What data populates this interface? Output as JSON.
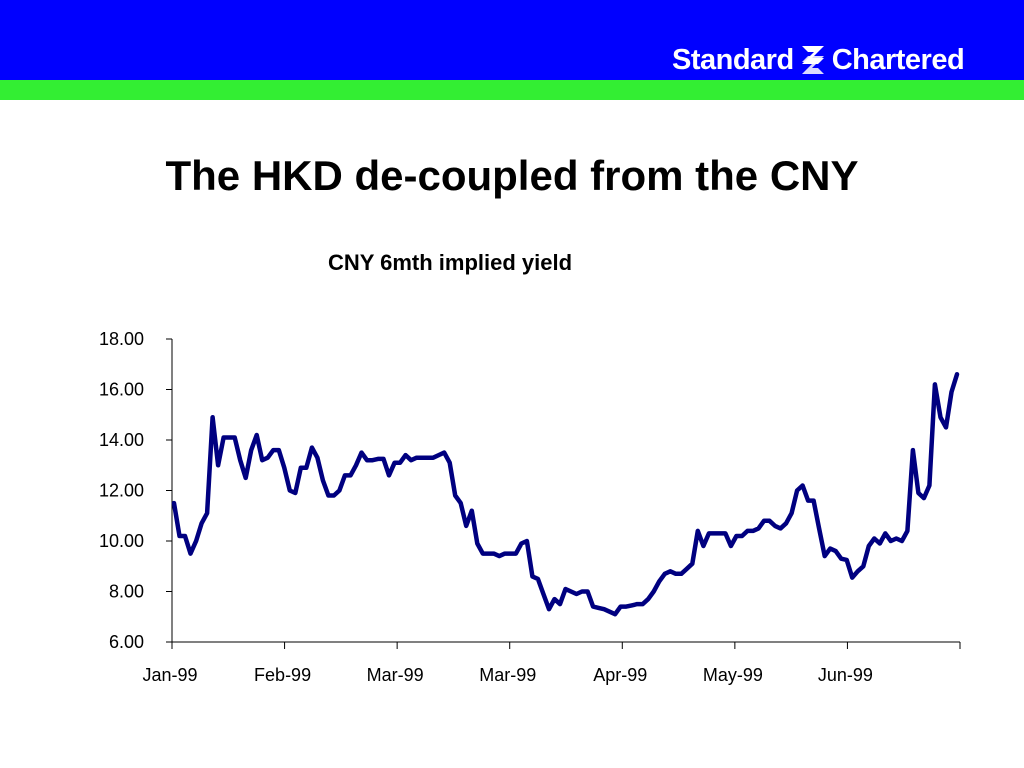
{
  "header": {
    "brand_left": "Standard",
    "brand_right": "Chartered",
    "band_color": "#0000FF",
    "stripe_color": "#33EE33"
  },
  "slide": {
    "title": "The HKD de-coupled from the CNY"
  },
  "chart_data": {
    "type": "line",
    "title": "CNY 6mth implied yield",
    "xlabel": "",
    "ylabel": "",
    "ylim": [
      6,
      18
    ],
    "yticks": [
      "18.00",
      "16.00",
      "14.00",
      "12.00",
      "10.00",
      "8.00",
      "6.00"
    ],
    "xtick_labels": [
      "Jan-99",
      "Feb-99",
      "Mar-99",
      "Mar-99",
      "Apr-99",
      "May-99",
      "Jun-99",
      ""
    ],
    "line_color": "#000080",
    "grid": false,
    "legend": "none",
    "series": [
      {
        "values": [
          11.5,
          10.2,
          10.2,
          9.5,
          10.0,
          10.7,
          11.1,
          14.9,
          13.0,
          14.1,
          14.1,
          14.1,
          13.2,
          12.5,
          13.6,
          14.2,
          13.2,
          13.3,
          13.6,
          13.6,
          12.9,
          12.0,
          11.9,
          12.9,
          12.9,
          13.7,
          13.3,
          12.4,
          11.8,
          11.8,
          12.0,
          12.6,
          12.6,
          13.0,
          13.5,
          13.2,
          13.2,
          13.25,
          13.25,
          12.6,
          13.1,
          13.1,
          13.4,
          13.2,
          13.3,
          13.3,
          13.3,
          13.3,
          13.4,
          13.5,
          13.1,
          11.8,
          11.5,
          10.6,
          11.2,
          9.9,
          9.5,
          9.5,
          9.5,
          9.4,
          9.5,
          9.5,
          9.5,
          9.9,
          10.0,
          8.6,
          8.5,
          7.9,
          7.3,
          7.7,
          7.5,
          8.1,
          8.0,
          7.9,
          8.0,
          8.0,
          7.4,
          7.35,
          7.3,
          7.2,
          7.1,
          7.4,
          7.4,
          7.45,
          7.5,
          7.5,
          7.7,
          8.0,
          8.4,
          8.7,
          8.8,
          8.7,
          8.7,
          8.9,
          9.1,
          10.4,
          9.8,
          10.3,
          10.3,
          10.3,
          10.3,
          9.8,
          10.2,
          10.2,
          10.4,
          10.4,
          10.5,
          10.8,
          10.8,
          10.6,
          10.5,
          10.7,
          11.1,
          12.0,
          12.2,
          11.6,
          11.6,
          10.5,
          9.4,
          9.7,
          9.6,
          9.3,
          9.25,
          8.55,
          8.8,
          9.0,
          9.8,
          10.1,
          9.9,
          10.3,
          10.0,
          10.1,
          10.0,
          10.4,
          13.6,
          11.9,
          11.7,
          12.2,
          16.2,
          14.9,
          14.5,
          15.9,
          16.6
        ]
      }
    ]
  }
}
